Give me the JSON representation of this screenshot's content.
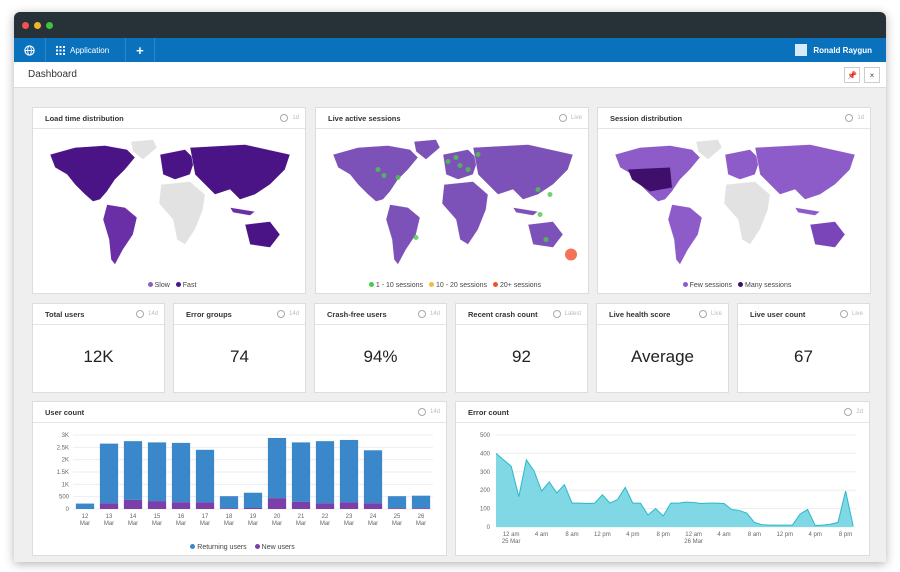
{
  "nav": {
    "app_label": "Application",
    "add_label": "+",
    "user_name": "Ronald Raygun"
  },
  "header": {
    "title": "Dashboard",
    "pin": "pin-icon",
    "close": "×"
  },
  "maps": [
    {
      "title": "Load time distribution",
      "badge": "1d",
      "legend": [
        {
          "label": "Slow",
          "color": "#8e5cc9"
        },
        {
          "label": "Fast",
          "color": "#4a1486"
        }
      ]
    },
    {
      "title": "Live active sessions",
      "badge": "Live",
      "legend": [
        {
          "label": "1 - 10 sessions",
          "color": "#4cc84c"
        },
        {
          "label": "10 - 20 sessions",
          "color": "#f5b942"
        },
        {
          "label": "20+ sessions",
          "color": "#f0502a"
        }
      ]
    },
    {
      "title": "Session distribution",
      "badge": "1d",
      "legend": [
        {
          "label": "Few sessions",
          "color": "#8e5cc9"
        },
        {
          "label": "Many sessions",
          "color": "#3f0f6b"
        }
      ]
    }
  ],
  "stats": [
    {
      "title": "Total users",
      "badge": "14d",
      "value": "12K"
    },
    {
      "title": "Error groups",
      "badge": "14d",
      "value": "74"
    },
    {
      "title": "Crash-free users",
      "badge": "14d",
      "value": "94%"
    },
    {
      "title": "Recent crash count",
      "badge": "Latest",
      "value": "92"
    },
    {
      "title": "Live health score",
      "badge": "Live",
      "value": "Average"
    },
    {
      "title": "Live user count",
      "badge": "Live",
      "value": "67"
    }
  ],
  "chart_data": [
    {
      "type": "bar",
      "title": "User count",
      "badge": "14d",
      "stacked": true,
      "categories": [
        "12 Mar",
        "13 Mar",
        "14 Mar",
        "15 Mar",
        "16 Mar",
        "17 Mar",
        "18 Mar",
        "19 Mar",
        "20 Mar",
        "21 Mar",
        "22 Mar",
        "23 Mar",
        "24 Mar",
        "25 Mar",
        "26 Mar"
      ],
      "yticks": [
        "0",
        "500",
        "1K",
        "1.5K",
        "2K",
        "2.5K",
        "3K"
      ],
      "ylim": [
        0,
        3000
      ],
      "grid": true,
      "legend_position": "bottom",
      "series": [
        {
          "name": "Returning users",
          "color": "#3a87c9",
          "values": [
            220,
            2420,
            2380,
            2380,
            2410,
            2130,
            490,
            620,
            2440,
            2410,
            2520,
            2530,
            2150,
            490,
            510
          ]
        },
        {
          "name": "New users",
          "color": "#7a3fa8",
          "values": [
            0,
            230,
            370,
            320,
            270,
            270,
            30,
            40,
            440,
            290,
            230,
            270,
            230,
            30,
            30
          ]
        }
      ]
    },
    {
      "type": "area",
      "title": "Error count",
      "badge": "2d",
      "ylim": [
        0,
        500
      ],
      "yticks": [
        "0",
        "100",
        "200",
        "300",
        "400",
        "500"
      ],
      "grid": true,
      "color": "#2bb7cc",
      "xticks": [
        [
          "12 am",
          "25 Mar"
        ],
        [
          "4 am"
        ],
        [
          "8 am"
        ],
        [
          "12 pm"
        ],
        [
          "4 pm"
        ],
        [
          "8 pm"
        ],
        [
          "12 am",
          "26 Mar"
        ],
        [
          "4 am"
        ],
        [
          "8 am"
        ],
        [
          "12 pm"
        ],
        [
          "4 pm"
        ],
        [
          "8 pm"
        ]
      ],
      "x_start": "24 Mar 10 pm",
      "x_step": "1 hour",
      "values": [
        400,
        365,
        330,
        165,
        365,
        305,
        195,
        245,
        185,
        230,
        130,
        130,
        128,
        130,
        175,
        130,
        150,
        215,
        130,
        130,
        65,
        100,
        60,
        130,
        130,
        135,
        133,
        128,
        130,
        130,
        128,
        95,
        90,
        75,
        25,
        12,
        10,
        10,
        10,
        10,
        70,
        95,
        8,
        10,
        15,
        25,
        195,
        5
      ]
    }
  ]
}
